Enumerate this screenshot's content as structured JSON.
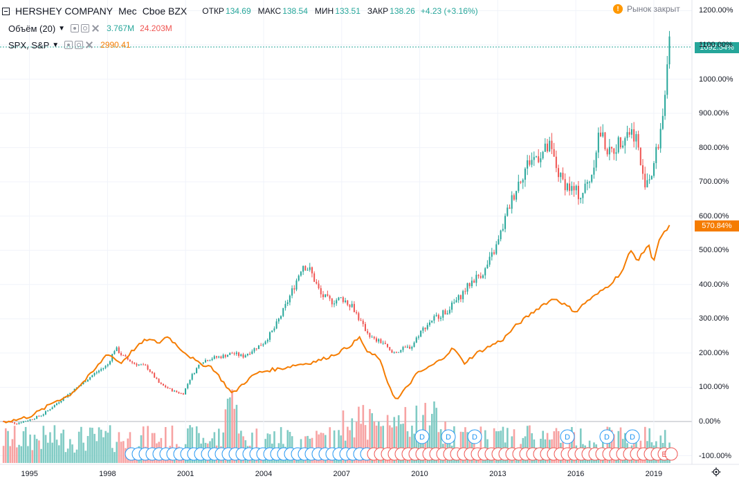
{
  "legend": {
    "symbol": "HERSHEY COMPANY",
    "interval": "Мес",
    "exchange": "Cboe BZX",
    "ohlc": [
      {
        "label": "ОТКР",
        "value": "134.69"
      },
      {
        "label": "МАКС",
        "value": "138.54"
      },
      {
        "label": "МИН",
        "value": "133.51"
      },
      {
        "label": "ЗАКР",
        "value": "138.26"
      }
    ],
    "change": "+4.23 (+3.16%)",
    "market_status": "Рынок закрыт",
    "volume_label": "Объём (20)",
    "volume_value_1": "3.767M",
    "volume_value_2": "24.203M",
    "compare_label": "SPX, S&P",
    "compare_value": "2990.41"
  },
  "price_tags": {
    "main": "1092.54%",
    "compare": "570.84%"
  },
  "colors": {
    "up": "#26a69a",
    "down": "#ef5350",
    "compare": "#f57c00",
    "grid": "#f0f3fa",
    "volume_up": "#80cbc4",
    "volume_down": "#f7a3a3"
  },
  "chart_data": {
    "type": "candlestick",
    "y_axis": {
      "unit": "%",
      "min": -100,
      "max": 1200,
      "ticks": [
        "1200.00%",
        "1100.00%",
        "1000.00%",
        "900.00%",
        "800.00%",
        "700.00%",
        "600.00%",
        "500.00%",
        "400.00%",
        "300.00%",
        "200.00%",
        "100.00%",
        "0.00%",
        "-100.00%"
      ]
    },
    "x_axis": {
      "ticks": [
        "1995",
        "1998",
        "2001",
        "2004",
        "2007",
        "2010",
        "2013",
        "2016",
        "2019"
      ]
    },
    "series": [
      {
        "name": "HERSHEY COMPANY",
        "kind": "candles",
        "points": [
          [
            1994.0,
            0
          ],
          [
            1994.5,
            -5
          ],
          [
            1995.0,
            5
          ],
          [
            1995.5,
            20
          ],
          [
            1996.0,
            50
          ],
          [
            1996.5,
            80
          ],
          [
            1997.0,
            110
          ],
          [
            1997.5,
            140
          ],
          [
            1998.0,
            165
          ],
          [
            1998.3,
            215
          ],
          [
            1998.6,
            190
          ],
          [
            1999.0,
            170
          ],
          [
            1999.5,
            160
          ],
          [
            2000.0,
            110
          ],
          [
            2000.5,
            90
          ],
          [
            2000.9,
            80
          ],
          [
            2001.2,
            130
          ],
          [
            2001.6,
            175
          ],
          [
            2002.0,
            185
          ],
          [
            2002.4,
            190
          ],
          [
            2002.8,
            200
          ],
          [
            2003.2,
            190
          ],
          [
            2003.6,
            210
          ],
          [
            2004.0,
            230
          ],
          [
            2004.4,
            270
          ],
          [
            2004.8,
            330
          ],
          [
            2005.2,
            400
          ],
          [
            2005.5,
            460
          ],
          [
            2005.8,
            440
          ],
          [
            2006.2,
            370
          ],
          [
            2006.6,
            350
          ],
          [
            2007.0,
            360
          ],
          [
            2007.4,
            340
          ],
          [
            2007.8,
            280
          ],
          [
            2008.2,
            240
          ],
          [
            2008.6,
            230
          ],
          [
            2008.9,
            200
          ],
          [
            2009.3,
            210
          ],
          [
            2009.7,
            220
          ],
          [
            2010.0,
            260
          ],
          [
            2010.5,
            300
          ],
          [
            2011.0,
            320
          ],
          [
            2011.5,
            360
          ],
          [
            2012.0,
            410
          ],
          [
            2012.5,
            440
          ],
          [
            2013.0,
            520
          ],
          [
            2013.4,
            620
          ],
          [
            2013.8,
            700
          ],
          [
            2014.2,
            760
          ],
          [
            2014.6,
            780
          ],
          [
            2015.0,
            800
          ],
          [
            2015.4,
            710
          ],
          [
            2015.8,
            680
          ],
          [
            2016.2,
            660
          ],
          [
            2016.6,
            720
          ],
          [
            2016.9,
            850
          ],
          [
            2017.3,
            780
          ],
          [
            2017.7,
            820
          ],
          [
            2018.0,
            850
          ],
          [
            2018.3,
            840
          ],
          [
            2018.6,
            700
          ],
          [
            2018.9,
            720
          ],
          [
            2019.2,
            820
          ],
          [
            2019.5,
            1000
          ],
          [
            2019.6,
            1092.54
          ]
        ]
      },
      {
        "name": "SPX, S&P",
        "kind": "line",
        "points": [
          [
            1994.0,
            0
          ],
          [
            1994.5,
            5
          ],
          [
            1995.0,
            15
          ],
          [
            1995.5,
            35
          ],
          [
            1996.0,
            60
          ],
          [
            1996.5,
            75
          ],
          [
            1997.0,
            110
          ],
          [
            1997.5,
            150
          ],
          [
            1998.0,
            200
          ],
          [
            1998.5,
            170
          ],
          [
            1999.0,
            210
          ],
          [
            1999.5,
            240
          ],
          [
            2000.0,
            230
          ],
          [
            2000.3,
            250
          ],
          [
            2000.7,
            220
          ],
          [
            2001.0,
            200
          ],
          [
            2001.5,
            170
          ],
          [
            2002.0,
            160
          ],
          [
            2002.5,
            110
          ],
          [
            2002.8,
            80
          ],
          [
            2003.2,
            110
          ],
          [
            2003.7,
            140
          ],
          [
            2004.2,
            150
          ],
          [
            2004.7,
            155
          ],
          [
            2005.2,
            165
          ],
          [
            2005.7,
            170
          ],
          [
            2006.2,
            180
          ],
          [
            2006.7,
            195
          ],
          [
            2007.2,
            215
          ],
          [
            2007.7,
            245
          ],
          [
            2008.0,
            200
          ],
          [
            2008.4,
            190
          ],
          [
            2008.8,
            110
          ],
          [
            2009.1,
            60
          ],
          [
            2009.5,
            100
          ],
          [
            2009.9,
            140
          ],
          [
            2010.4,
            160
          ],
          [
            2010.8,
            180
          ],
          [
            2011.3,
            215
          ],
          [
            2011.7,
            170
          ],
          [
            2012.2,
            200
          ],
          [
            2012.7,
            220
          ],
          [
            2013.2,
            240
          ],
          [
            2013.7,
            280
          ],
          [
            2014.2,
            310
          ],
          [
            2014.7,
            340
          ],
          [
            2015.2,
            360
          ],
          [
            2015.6,
            340
          ],
          [
            2016.0,
            320
          ],
          [
            2016.4,
            350
          ],
          [
            2016.8,
            370
          ],
          [
            2017.3,
            400
          ],
          [
            2017.8,
            440
          ],
          [
            2018.1,
            500
          ],
          [
            2018.4,
            470
          ],
          [
            2018.8,
            520
          ],
          [
            2018.95,
            460
          ],
          [
            2019.2,
            530
          ],
          [
            2019.6,
            570.84
          ]
        ]
      }
    ],
    "volume": {
      "label": "Объём (20)"
    },
    "events": {
      "dividend_marker": "D",
      "earnings_marker": "E"
    }
  }
}
